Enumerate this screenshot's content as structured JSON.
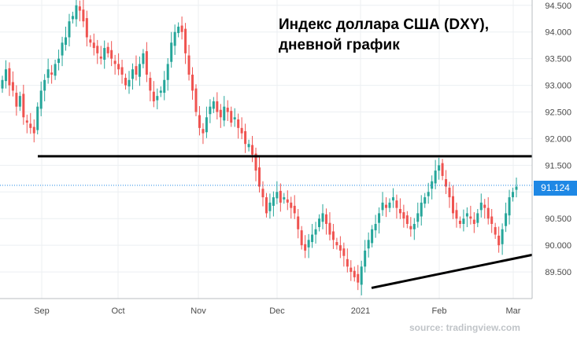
{
  "chart_data": {
    "type": "candlestick",
    "title": "Индекс доллара США (DXY),",
    "subtitle": "дневной график",
    "source": "source: tradingview.com",
    "current_price": "91.124",
    "ylim": [
      89.0,
      94.6
    ],
    "y_ticks": [
      "94.500",
      "94.000",
      "93.500",
      "93.000",
      "92.500",
      "92.000",
      "91.500",
      "91.000",
      "90.500",
      "90.000",
      "89.500"
    ],
    "x_ticks": [
      "Sep",
      "Oct",
      "Nov",
      "Dec",
      "2021",
      "Feb",
      "Mar"
    ],
    "trend_lines": [
      {
        "name": "resistance",
        "from": [
          "2020-08-26",
          91.67
        ],
        "to": [
          "2021-03-05",
          91.67
        ]
      },
      {
        "name": "support",
        "from": [
          "2021-01-06",
          89.2
        ],
        "to": [
          "2021-03-05",
          89.82
        ]
      }
    ],
    "close_values": [
      93.1,
      93.3,
      93.0,
      92.9,
      92.6,
      92.8,
      92.4,
      92.3,
      92.2,
      92.1,
      92.6,
      92.9,
      93.1,
      93.3,
      93.2,
      93.4,
      93.5,
      93.8,
      93.9,
      94.2,
      94.3,
      94.5,
      94.4,
      94.2,
      93.9,
      93.8,
      93.7,
      93.6,
      93.5,
      93.7,
      93.6,
      93.5,
      93.4,
      93.3,
      93.2,
      93.0,
      93.1,
      93.3,
      93.2,
      93.4,
      93.6,
      93.2,
      92.9,
      92.7,
      92.8,
      92.9,
      93.1,
      93.4,
      93.8,
      94.0,
      94.1,
      94.0,
      93.6,
      93.2,
      92.9,
      92.5,
      92.2,
      92.1,
      92.4,
      92.6,
      92.7,
      92.5,
      92.4,
      92.6,
      92.5,
      92.3,
      92.4,
      92.2,
      92.1,
      91.9,
      91.9,
      91.7,
      91.4,
      91.1,
      90.9,
      90.6,
      90.8,
      90.9,
      91.0,
      90.8,
      90.9,
      90.8,
      90.7,
      90.6,
      90.3,
      90.0,
      89.9,
      90.1,
      90.2,
      90.3,
      90.5,
      90.6,
      90.4,
      90.2,
      90.1,
      90.0,
      89.9,
      89.8,
      89.6,
      89.5,
      89.4,
      89.3,
      89.6,
      89.9,
      90.1,
      90.3,
      90.4,
      90.6,
      90.8,
      90.7,
      90.8,
      90.9,
      90.7,
      90.6,
      90.5,
      90.4,
      90.3,
      90.4,
      90.6,
      90.8,
      90.9,
      91.0,
      91.2,
      91.4,
      91.5,
      91.3,
      91.1,
      90.9,
      90.6,
      90.5,
      90.4,
      90.5,
      90.6,
      90.5,
      90.4,
      90.6,
      90.8,
      90.7,
      90.5,
      90.4,
      90.2,
      90.0,
      90.3,
      90.6,
      90.9,
      91.0,
      91.1
    ]
  }
}
